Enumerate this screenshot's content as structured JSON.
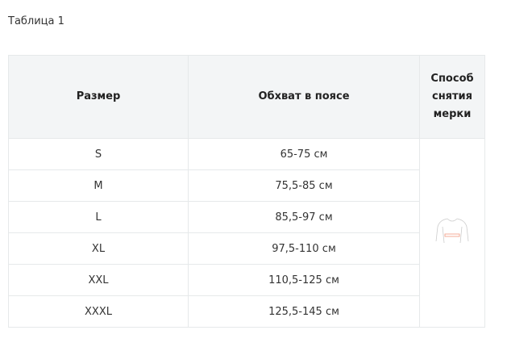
{
  "caption": "Таблица 1",
  "headers": [
    "Размер",
    "Обхват в поясе",
    "Способ снятия мерки"
  ],
  "rows": [
    {
      "size": "S",
      "waist": "65-75 см"
    },
    {
      "size": "M",
      "waist": "75,5-85 см"
    },
    {
      "size": "L",
      "waist": "85,5-97 см"
    },
    {
      "size": "XL",
      "waist": "97,5-110 см"
    },
    {
      "size": "XXL",
      "waist": "110,5-125 см"
    },
    {
      "size": "XXXL",
      "waist": "125,5-145 см"
    }
  ],
  "icon": "waist-measurement-figure-icon",
  "accent": "#f39a80"
}
